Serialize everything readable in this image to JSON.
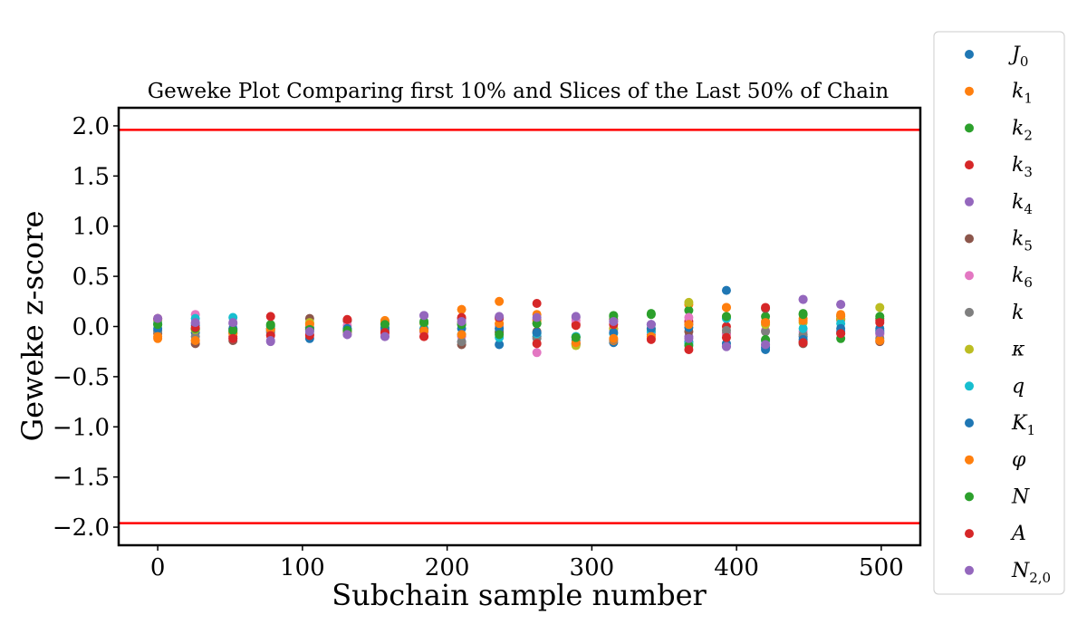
{
  "chart_data": {
    "type": "scatter",
    "title": "Geweke Plot Comparing first 10% and Slices of the Last 50% of Chain",
    "xlabel": "Subchain sample number",
    "ylabel": "Geweke z-score",
    "xlim": [
      -27,
      527
    ],
    "ylim": [
      -2.18,
      2.18
    ],
    "x_ticks": [
      0,
      100,
      200,
      300,
      400,
      500
    ],
    "x_tick_labels": [
      "0",
      "100",
      "200",
      "300",
      "400",
      "500"
    ],
    "y_ticks": [
      2.0,
      1.5,
      1.0,
      0.5,
      0.0,
      -0.5,
      -1.0,
      -1.5,
      -2.0
    ],
    "y_tick_labels": [
      "2.0",
      "1.5",
      "1.0",
      "0.5",
      "0.0",
      "−0.5",
      "−1.0",
      "−1.5",
      "−2.0"
    ],
    "reference_lines": [
      {
        "y": 1.96,
        "color": "#ff0000"
      },
      {
        "y": -1.96,
        "color": "#ff0000"
      }
    ],
    "grid": false,
    "legend_position": "outside-right",
    "x": [
      0,
      26,
      52,
      78,
      105,
      131,
      157,
      184,
      210,
      236,
      262,
      289,
      315,
      341,
      367,
      393,
      420,
      446,
      472,
      499
    ],
    "series": [
      {
        "name": "J_0",
        "color": "#1f77b4",
        "values": [
          -0.04,
          -0.06,
          -0.03,
          -0.05,
          -0.12,
          -0.05,
          -0.04,
          -0.03,
          -0.15,
          -0.18,
          -0.1,
          -0.14,
          -0.16,
          0.02,
          -0.15,
          0.36,
          -0.23,
          -0.1,
          -0.05,
          -0.02
        ]
      },
      {
        "name": "k_1",
        "color": "#ff7f0e",
        "values": [
          -0.12,
          -0.14,
          -0.06,
          -0.02,
          0.03,
          -0.04,
          0.06,
          -0.05,
          0.17,
          0.25,
          0.12,
          -0.17,
          -0.14,
          -0.12,
          0.22,
          0.19,
          0.05,
          0.08,
          0.12,
          -0.14
        ]
      },
      {
        "name": "k_2",
        "color": "#2ca02c",
        "values": [
          0.02,
          -0.02,
          -0.05,
          0.02,
          -0.02,
          -0.04,
          0.03,
          0.05,
          0.02,
          -0.05,
          0.03,
          -0.1,
          0.11,
          0.13,
          0.16,
          0.09,
          0.1,
          0.13,
          0.1,
          0.08
        ]
      },
      {
        "name": "k_3",
        "color": "#d62728",
        "values": [
          0.07,
          -0.03,
          -0.1,
          0.1,
          -0.08,
          0.06,
          -0.06,
          -0.1,
          0.08,
          0.08,
          0.23,
          0.02,
          -0.02,
          -0.08,
          0.05,
          0.0,
          -0.14,
          -0.15,
          0.07,
          0.06
        ]
      },
      {
        "name": "k_4",
        "color": "#9467bd",
        "values": [
          0.08,
          0.03,
          0.03,
          -0.15,
          -0.03,
          -0.08,
          -0.1,
          0.11,
          0.08,
          0.09,
          0.07,
          0.09,
          0.05,
          0.02,
          -0.1,
          -0.2,
          -0.18,
          0.27,
          0.22,
          -0.07
        ]
      },
      {
        "name": "k_5",
        "color": "#8c564b",
        "values": [
          -0.07,
          -0.17,
          -0.14,
          -0.04,
          0.08,
          0.06,
          -0.03,
          -0.05,
          -0.18,
          -0.06,
          -0.05,
          -0.17,
          0.07,
          -0.05,
          -0.05,
          -0.07,
          0.18,
          -0.17,
          0.07,
          -0.15
        ]
      },
      {
        "name": "k_6",
        "color": "#e377c2",
        "values": [
          0.06,
          0.12,
          -0.12,
          -0.08,
          -0.03,
          0.01,
          -0.08,
          -0.06,
          -0.1,
          0.01,
          -0.26,
          0.06,
          -0.04,
          -0.06,
          0.09,
          -0.08,
          -0.04,
          -0.05,
          0.08,
          -0.08
        ]
      },
      {
        "name": "k",
        "color": "#7f7f7f",
        "values": [
          -0.05,
          -0.1,
          -0.07,
          -0.06,
          -0.01,
          -0.06,
          -0.01,
          -0.04,
          -0.15,
          -0.02,
          -0.12,
          -0.18,
          -0.13,
          -0.03,
          0.02,
          -0.04,
          -0.05,
          -0.08,
          -0.07,
          -0.12
        ]
      },
      {
        "name": "kappa",
        "color": "#bcbd22",
        "values": [
          0.05,
          -0.03,
          -0.02,
          -0.02,
          0.04,
          -0.02,
          0.05,
          0.03,
          0.04,
          0.03,
          0.04,
          -0.19,
          -0.02,
          -0.02,
          0.24,
          0.1,
          0.02,
          0.04,
          0.08,
          0.19
        ]
      },
      {
        "name": "q",
        "color": "#17becf",
        "values": [
          0.03,
          0.08,
          0.09,
          0.0,
          -0.05,
          -0.03,
          -0.02,
          -0.02,
          -0.08,
          -0.11,
          -0.07,
          -0.1,
          -0.07,
          -0.05,
          -0.17,
          0.08,
          -0.14,
          -0.02,
          0.03,
          -0.05
        ]
      },
      {
        "name": "K_1",
        "color": "#1f77b4",
        "values": [
          -0.02,
          0.01,
          -0.02,
          -0.02,
          -0.01,
          -0.02,
          -0.01,
          -0.03,
          -0.02,
          -0.02,
          -0.06,
          -0.11,
          -0.06,
          -0.02,
          -0.01,
          -0.17,
          -0.21,
          -0.13,
          -0.02,
          -0.04
        ]
      },
      {
        "name": "varphi",
        "color": "#ff7f0e",
        "values": [
          -0.1,
          -0.14,
          -0.07,
          -0.03,
          0.02,
          -0.05,
          0.05,
          -0.04,
          -0.08,
          0.03,
          0.06,
          -0.16,
          -0.12,
          -0.1,
          0.02,
          0.19,
          0.04,
          0.06,
          0.11,
          -0.14
        ]
      },
      {
        "name": "N",
        "color": "#2ca02c",
        "values": [
          0.02,
          -0.02,
          -0.04,
          0.01,
          -0.03,
          -0.04,
          0.02,
          0.04,
          0.02,
          -0.08,
          0.03,
          -0.11,
          0.1,
          0.12,
          -0.19,
          0.1,
          -0.13,
          0.12,
          -0.12,
          0.1
        ]
      },
      {
        "name": "A",
        "color": "#d62728",
        "values": [
          0.08,
          -0.01,
          -0.12,
          -0.09,
          -0.09,
          0.07,
          -0.06,
          -0.1,
          0.09,
          0.09,
          -0.17,
          0.01,
          0.02,
          -0.13,
          -0.23,
          -0.11,
          0.19,
          -0.16,
          -0.07,
          0.04
        ]
      },
      {
        "name": "N_{2,0}",
        "color": "#9467bd",
        "values": [
          0.08,
          0.04,
          0.04,
          -0.14,
          -0.05,
          -0.08,
          -0.1,
          0.11,
          0.05,
          0.1,
          0.09,
          0.1,
          0.05,
          0.02,
          -0.12,
          -0.2,
          -0.18,
          0.27,
          0.22,
          -0.06
        ]
      }
    ],
    "legend": [
      {
        "base": "J",
        "sub": "0",
        "color": "#1f77b4"
      },
      {
        "base": "k",
        "sub": "1",
        "color": "#ff7f0e"
      },
      {
        "base": "k",
        "sub": "2",
        "color": "#2ca02c"
      },
      {
        "base": "k",
        "sub": "3",
        "color": "#d62728"
      },
      {
        "base": "k",
        "sub": "4",
        "color": "#9467bd"
      },
      {
        "base": "k",
        "sub": "5",
        "color": "#8c564b"
      },
      {
        "base": "k",
        "sub": "6",
        "color": "#e377c2"
      },
      {
        "base": "k",
        "sub": "",
        "color": "#7f7f7f"
      },
      {
        "base": "κ",
        "sub": "",
        "color": "#bcbd22"
      },
      {
        "base": "q",
        "sub": "",
        "color": "#17becf"
      },
      {
        "base": "K",
        "sub": "1",
        "color": "#1f77b4"
      },
      {
        "base": "φ",
        "sub": "",
        "color": "#ff7f0e"
      },
      {
        "base": "N",
        "sub": "",
        "color": "#2ca02c"
      },
      {
        "base": "A",
        "sub": "",
        "color": "#d62728"
      },
      {
        "base": "N",
        "sub": "2,0",
        "color": "#9467bd"
      }
    ]
  }
}
